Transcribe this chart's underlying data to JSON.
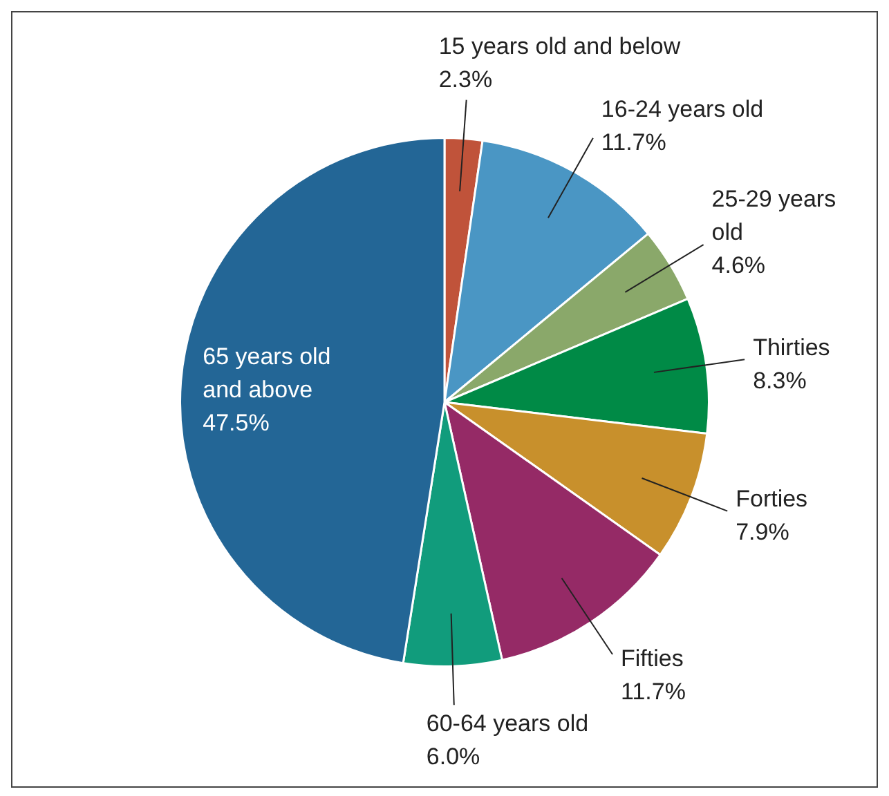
{
  "chart_data": {
    "type": "pie",
    "categories": [
      "15 years old and below",
      "16-24 years old",
      "25-29 years old",
      "Thirties",
      "Forties",
      "Fifties",
      "60-64 years old",
      "65 years old and above"
    ],
    "values": [
      2.3,
      11.7,
      4.6,
      8.3,
      7.9,
      11.7,
      6.0,
      47.5
    ],
    "value_labels": [
      "2.3%",
      "11.7%",
      "4.6%",
      "8.3%",
      "7.9%",
      "11.7%",
      "6.0%",
      "47.5%"
    ],
    "colors": [
      "#c0533a",
      "#4a96c4",
      "#8aa86a",
      "#008a46",
      "#c8902c",
      "#952a66",
      "#119c7c",
      "#236696"
    ],
    "legend": false
  }
}
